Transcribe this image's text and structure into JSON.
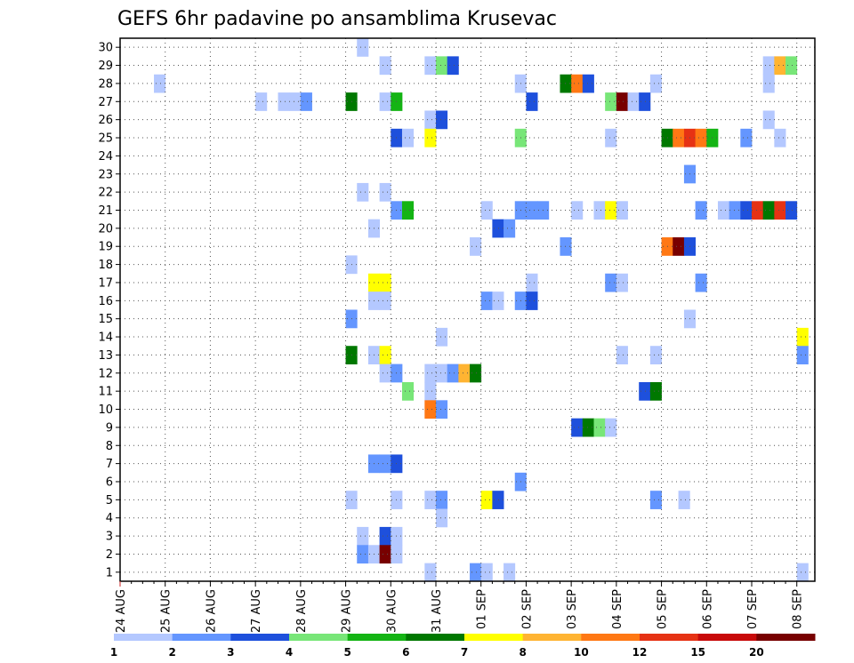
{
  "chart_data": {
    "type": "heatmap",
    "title": "GEFS 6hr padavine po ansamblima Krusevac",
    "x_tick_labels": [
      "24 AUG",
      "25 AUG",
      "26 AUG",
      "27 AUG",
      "28 AUG",
      "29 AUG",
      "30 AUG",
      "31 AUG",
      "01 SEP",
      "02 SEP",
      "03 SEP",
      "04 SEP",
      "05 SEP",
      "06 SEP",
      "07 SEP",
      "08 SEP"
    ],
    "y_tick_labels": [
      "1",
      "2",
      "3",
      "4",
      "5",
      "6",
      "7",
      "8",
      "9",
      "10",
      "11",
      "12",
      "13",
      "14",
      "15",
      "16",
      "17",
      "18",
      "19",
      "20",
      "21",
      "22",
      "23",
      "24",
      "25",
      "26",
      "27",
      "28",
      "29",
      "30"
    ],
    "xlim_days": [
      0,
      15.4
    ],
    "ylim_members": [
      0.5,
      30.5
    ],
    "step_days": 0.25,
    "grid": "dotted",
    "legend": {
      "position": "bottom",
      "boundaries": [
        "1",
        "2",
        "3",
        "4",
        "5",
        "6",
        "7",
        "8",
        "10",
        "12",
        "15",
        "20"
      ],
      "colors": [
        "#b4c8ff",
        "#6496ff",
        "#1e50dc",
        "#78e678",
        "#14b414",
        "#007800",
        "#ffff00",
        "#ffb432",
        "#ff7814",
        "#e63214",
        "#c80a0a",
        "#780000"
      ]
    },
    "cells_note": "each cell: [member, day_offset_from_24AUG_00UTC, color_class_index]",
    "cells": [
      [
        30,
        5.25,
        0
      ],
      [
        29,
        5.75,
        0
      ],
      [
        29,
        6.75,
        0
      ],
      [
        29,
        7.0,
        3
      ],
      [
        29,
        7.25,
        2
      ],
      [
        29,
        14.25,
        0
      ],
      [
        29,
        14.5,
        7
      ],
      [
        29,
        14.75,
        3
      ],
      [
        28,
        0.75,
        0
      ],
      [
        28,
        8.75,
        0
      ],
      [
        28,
        9.75,
        5
      ],
      [
        28,
        10.0,
        8
      ],
      [
        28,
        10.25,
        2
      ],
      [
        28,
        11.75,
        0
      ],
      [
        28,
        14.25,
        0
      ],
      [
        27,
        3.0,
        0
      ],
      [
        27,
        3.5,
        0
      ],
      [
        27,
        3.75,
        0
      ],
      [
        27,
        4.0,
        1
      ],
      [
        27,
        5.0,
        5
      ],
      [
        27,
        5.75,
        0
      ],
      [
        27,
        6.0,
        4
      ],
      [
        27,
        9.0,
        2
      ],
      [
        27,
        10.75,
        3
      ],
      [
        27,
        11.0,
        11
      ],
      [
        27,
        11.25,
        0
      ],
      [
        27,
        11.5,
        2
      ],
      [
        26,
        6.75,
        0
      ],
      [
        26,
        7.0,
        2
      ],
      [
        26,
        14.25,
        0
      ],
      [
        25,
        6.0,
        2
      ],
      [
        25,
        6.25,
        0
      ],
      [
        25,
        6.75,
        6
      ],
      [
        25,
        8.75,
        3
      ],
      [
        25,
        10.75,
        0
      ],
      [
        25,
        12.0,
        5
      ],
      [
        25,
        12.25,
        8
      ],
      [
        25,
        12.5,
        9
      ],
      [
        25,
        12.75,
        8
      ],
      [
        25,
        13.0,
        4
      ],
      [
        25,
        13.75,
        1
      ],
      [
        25,
        14.5,
        0
      ],
      [
        23,
        12.5,
        1
      ],
      [
        22,
        5.25,
        0
      ],
      [
        22,
        5.75,
        0
      ],
      [
        21,
        6.0,
        1
      ],
      [
        21,
        6.25,
        4
      ],
      [
        21,
        8.0,
        0
      ],
      [
        21,
        8.75,
        1
      ],
      [
        21,
        9.0,
        1
      ],
      [
        21,
        9.25,
        1
      ],
      [
        21,
        10.0,
        0
      ],
      [
        21,
        10.5,
        0
      ],
      [
        21,
        10.75,
        6
      ],
      [
        21,
        11.0,
        0
      ],
      [
        21,
        12.75,
        1
      ],
      [
        21,
        13.25,
        0
      ],
      [
        21,
        13.5,
        1
      ],
      [
        21,
        13.75,
        2
      ],
      [
        21,
        14.0,
        9
      ],
      [
        21,
        14.25,
        5
      ],
      [
        21,
        14.5,
        9
      ],
      [
        21,
        14.75,
        2
      ],
      [
        20,
        5.5,
        0
      ],
      [
        20,
        8.25,
        2
      ],
      [
        20,
        8.5,
        1
      ],
      [
        19,
        7.75,
        0
      ],
      [
        19,
        9.75,
        1
      ],
      [
        19,
        12.0,
        8
      ],
      [
        19,
        12.25,
        11
      ],
      [
        19,
        12.5,
        2
      ],
      [
        18,
        5.0,
        0
      ],
      [
        17,
        5.5,
        6
      ],
      [
        17,
        5.75,
        6
      ],
      [
        17,
        9.0,
        0
      ],
      [
        17,
        10.75,
        1
      ],
      [
        17,
        11.0,
        0
      ],
      [
        17,
        12.75,
        1
      ],
      [
        16,
        5.5,
        0
      ],
      [
        16,
        5.75,
        0
      ],
      [
        16,
        8.0,
        1
      ],
      [
        16,
        8.25,
        0
      ],
      [
        16,
        8.75,
        1
      ],
      [
        16,
        9.0,
        2
      ],
      [
        15,
        5.0,
        1
      ],
      [
        15,
        12.5,
        0
      ],
      [
        14,
        7.0,
        0
      ],
      [
        14,
        15.0,
        6
      ],
      [
        13,
        5.0,
        5
      ],
      [
        13,
        5.5,
        0
      ],
      [
        13,
        5.75,
        6
      ],
      [
        13,
        11.0,
        0
      ],
      [
        13,
        11.75,
        0
      ],
      [
        13,
        15.0,
        1
      ],
      [
        12,
        5.75,
        0
      ],
      [
        12,
        6.0,
        1
      ],
      [
        12,
        7.0,
        0
      ],
      [
        12,
        7.25,
        1
      ],
      [
        12,
        6.75,
        0
      ],
      [
        12,
        7.5,
        7
      ],
      [
        12,
        7.75,
        5
      ],
      [
        11,
        6.25,
        3
      ],
      [
        11,
        6.75,
        0
      ],
      [
        11,
        11.5,
        2
      ],
      [
        11,
        11.75,
        5
      ],
      [
        10,
        6.75,
        8
      ],
      [
        10,
        7.0,
        1
      ],
      [
        9,
        10.0,
        2
      ],
      [
        9,
        10.25,
        5
      ],
      [
        9,
        10.5,
        3
      ],
      [
        9,
        10.75,
        0
      ],
      [
        7,
        5.5,
        1
      ],
      [
        7,
        5.75,
        1
      ],
      [
        7,
        6.0,
        2
      ],
      [
        6,
        8.75,
        1
      ],
      [
        5,
        5.0,
        0
      ],
      [
        5,
        6.0,
        0
      ],
      [
        5,
        6.75,
        0
      ],
      [
        5,
        7.0,
        1
      ],
      [
        5,
        8.0,
        6
      ],
      [
        5,
        8.25,
        2
      ],
      [
        5,
        11.75,
        1
      ],
      [
        5,
        12.375,
        0
      ],
      [
        4,
        7.0,
        0
      ],
      [
        3,
        5.25,
        0
      ],
      [
        3,
        5.75,
        2
      ],
      [
        3,
        6.0,
        0
      ],
      [
        2,
        5.25,
        1
      ],
      [
        2,
        5.5,
        0
      ],
      [
        2,
        5.75,
        11
      ],
      [
        2,
        6.0,
        0
      ],
      [
        1,
        6.75,
        0
      ],
      [
        1,
        7.75,
        1
      ],
      [
        1,
        8.0,
        0
      ],
      [
        1,
        8.5,
        0
      ],
      [
        1,
        15.0,
        0
      ]
    ]
  }
}
